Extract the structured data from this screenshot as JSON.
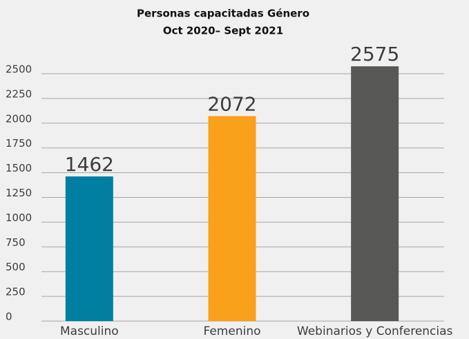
{
  "chart_data": {
    "type": "bar",
    "title": [
      "Personas capacitadas Género",
      "Oct 2020– Sept 2021"
    ],
    "categories": [
      "Masculino",
      "Femenino",
      "Webinarios y Conferencias"
    ],
    "values": [
      1462,
      2072,
      2575
    ],
    "colors": [
      "#007fa3",
      "#f9a11b",
      "#575756"
    ],
    "ylim": [
      0,
      2500
    ],
    "yticks": [
      0,
      250,
      500,
      750,
      1000,
      1250,
      1500,
      1750,
      2000,
      2250,
      2500
    ],
    "grid": true
  }
}
